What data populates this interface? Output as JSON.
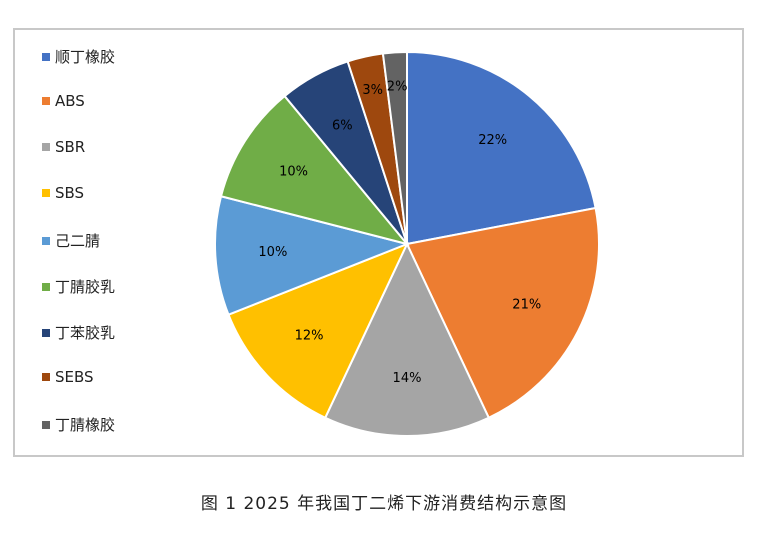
{
  "chart_data": {
    "type": "pie",
    "title": "",
    "slices": [
      {
        "label": "顺丁橡胶",
        "value": 22,
        "text": "22%",
        "color": "#4472c4"
      },
      {
        "label": "ABS",
        "value": 21,
        "text": "21%",
        "color": "#ed7d31"
      },
      {
        "label": "SBR",
        "value": 14,
        "text": "14%",
        "color": "#a5a5a5"
      },
      {
        "label": "SBS",
        "value": 12,
        "text": "12%",
        "color": "#ffc000"
      },
      {
        "label": "己二腈",
        "value": 10,
        "text": "10%",
        "color": "#5b9bd5"
      },
      {
        "label": "丁腈胶乳",
        "value": 10,
        "text": "10%",
        "color": "#70ad47"
      },
      {
        "label": "丁苯胶乳",
        "value": 6,
        "text": "6%",
        "color": "#264478"
      },
      {
        "label": "SEBS",
        "value": 3,
        "text": "3%",
        "color": "#9e480e"
      },
      {
        "label": "丁腈橡胶",
        "value": 2,
        "text": "2%",
        "color": "#636363"
      }
    ],
    "legend_position": "left",
    "start_angle": "12 o'clock, clockwise"
  },
  "caption": "图 1  2025 年我国丁二烯下游消费结构示意图"
}
